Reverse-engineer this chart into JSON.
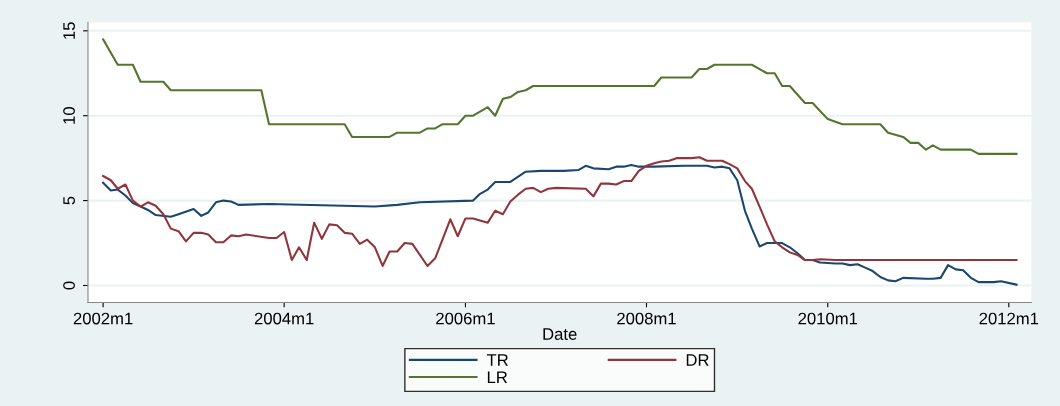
{
  "chart_data": {
    "type": "line",
    "xlabel": "Date",
    "xlim": [
      "2001-11",
      "2012-04"
    ],
    "xticks": [
      {
        "value": "2002-01",
        "label": "2002m1"
      },
      {
        "value": "2004-01",
        "label": "2004m1"
      },
      {
        "value": "2006-01",
        "label": "2006m1"
      },
      {
        "value": "2008-01",
        "label": "2008m1"
      },
      {
        "value": "2010-01",
        "label": "2010m1"
      },
      {
        "value": "2012-01",
        "label": "2012m1"
      }
    ],
    "ylim": [
      -1,
      15.5
    ],
    "yticks": [
      0,
      5,
      10,
      15
    ],
    "grid": "y",
    "legend": "bottom",
    "line_style": "solid",
    "series": [
      {
        "name": "TR",
        "color": "#1a476f",
        "x": [
          "2002-01",
          "2002-02",
          "2002-03",
          "2002-04",
          "2002-05",
          "2002-06",
          "2002-07",
          "2002-08",
          "2002-10",
          "2002-11",
          "2003-01",
          "2003-02",
          "2003-03",
          "2003-04",
          "2003-05",
          "2003-06",
          "2003-07",
          "2003-11",
          "2005-01",
          "2005-04",
          "2005-07",
          "2006-02",
          "2006-03",
          "2006-04",
          "2006-05",
          "2006-07",
          "2006-09",
          "2006-11",
          "2007-02",
          "2007-04",
          "2007-05",
          "2007-06",
          "2007-08",
          "2007-09",
          "2007-10",
          "2007-11",
          "2007-12",
          "2008-02",
          "2008-06",
          "2008-09",
          "2008-10",
          "2008-11",
          "2008-12",
          "2009-01",
          "2009-02",
          "2009-03",
          "2009-04",
          "2009-05",
          "2009-06",
          "2009-07",
          "2009-08",
          "2009-09",
          "2009-10",
          "2009-11",
          "2009-12",
          "2010-02",
          "2010-03",
          "2010-04",
          "2010-05",
          "2010-06",
          "2010-07",
          "2010-08",
          "2010-09",
          "2010-10",
          "2010-11",
          "2011-02",
          "2011-03",
          "2011-04",
          "2011-05",
          "2011-06",
          "2011-07",
          "2011-08",
          "2011-09",
          "2011-11",
          "2011-12",
          "2012-02"
        ],
        "values": [
          6.05,
          5.6,
          5.65,
          5.3,
          4.85,
          4.65,
          4.45,
          4.15,
          4.05,
          4.2,
          4.5,
          4.1,
          4.3,
          4.9,
          5.0,
          4.95,
          4.75,
          4.8,
          4.65,
          4.75,
          4.9,
          5.0,
          5.4,
          5.65,
          6.1,
          6.1,
          6.7,
          6.75,
          6.75,
          6.8,
          7.05,
          6.9,
          6.85,
          7.0,
          7.0,
          7.1,
          7.0,
          7.0,
          7.05,
          7.05,
          6.95,
          7.0,
          6.9,
          6.2,
          4.4,
          3.35,
          2.3,
          2.5,
          2.5,
          2.5,
          2.25,
          1.9,
          1.5,
          1.5,
          1.35,
          1.3,
          1.3,
          1.2,
          1.25,
          1.05,
          0.85,
          0.5,
          0.3,
          0.25,
          0.45,
          0.4,
          0.4,
          0.45,
          1.2,
          0.95,
          0.9,
          0.45,
          0.2,
          0.2,
          0.25,
          0.05
        ]
      },
      {
        "name": "DR",
        "color": "#90353b",
        "x": [
          "2002-01",
          "2002-02",
          "2002-03",
          "2002-04",
          "2002-05",
          "2002-06",
          "2002-07",
          "2002-08",
          "2002-09",
          "2002-10",
          "2002-11",
          "2002-12",
          "2003-01",
          "2003-02",
          "2003-03",
          "2003-04",
          "2003-05",
          "2003-06",
          "2003-07",
          "2003-08",
          "2003-11",
          "2003-12",
          "2004-01",
          "2004-02",
          "2004-03",
          "2004-04",
          "2004-05",
          "2004-06",
          "2004-07",
          "2004-08",
          "2004-09",
          "2004-10",
          "2004-11",
          "2004-12",
          "2005-01",
          "2005-02",
          "2005-03",
          "2005-04",
          "2005-05",
          "2005-06",
          "2005-08",
          "2005-09",
          "2005-11",
          "2005-12",
          "2006-01",
          "2006-02",
          "2006-04",
          "2006-05",
          "2006-06",
          "2006-07",
          "2006-08",
          "2006-09",
          "2006-10",
          "2006-11",
          "2006-12",
          "2007-01",
          "2007-05",
          "2007-06",
          "2007-07",
          "2007-08",
          "2007-09",
          "2007-10",
          "2007-11",
          "2007-12",
          "2008-01",
          "2008-02",
          "2008-03",
          "2008-04",
          "2008-05",
          "2008-06",
          "2008-07",
          "2008-08",
          "2008-09",
          "2008-10",
          "2008-11",
          "2008-12",
          "2009-01",
          "2009-02",
          "2009-03",
          "2009-04",
          "2009-05",
          "2009-06",
          "2009-07",
          "2009-08",
          "2009-09",
          "2009-10",
          "2009-11",
          "2009-12",
          "2010-02",
          "2012-02"
        ],
        "values": [
          6.45,
          6.2,
          5.7,
          5.95,
          5.0,
          4.65,
          4.9,
          4.7,
          4.2,
          3.35,
          3.2,
          2.6,
          3.1,
          3.1,
          3.0,
          2.55,
          2.55,
          2.95,
          2.9,
          3.0,
          2.8,
          2.8,
          3.15,
          1.5,
          2.25,
          1.5,
          3.7,
          2.75,
          3.6,
          3.55,
          3.1,
          3.05,
          2.45,
          2.7,
          2.25,
          1.15,
          2.0,
          2.0,
          2.5,
          2.45,
          1.15,
          1.6,
          3.9,
          2.9,
          3.95,
          3.95,
          3.7,
          4.4,
          4.2,
          4.95,
          5.35,
          5.7,
          5.75,
          5.5,
          5.7,
          5.75,
          5.7,
          5.25,
          6.0,
          6.0,
          5.95,
          6.15,
          6.15,
          6.75,
          7.05,
          7.2,
          7.3,
          7.35,
          7.5,
          7.5,
          7.5,
          7.55,
          7.35,
          7.35,
          7.35,
          7.15,
          6.9,
          6.15,
          5.7,
          4.65,
          3.6,
          2.6,
          2.25,
          1.95,
          1.8,
          1.5,
          1.5,
          1.55,
          1.5,
          1.5
        ]
      },
      {
        "name": "LR",
        "color": "#55752f",
        "x": [
          "2002-01",
          "2002-03",
          "2002-05",
          "2002-06",
          "2002-09",
          "2002-10",
          "2003-10",
          "2003-11",
          "2004-09",
          "2004-10",
          "2005-03",
          "2005-04",
          "2005-07",
          "2005-08",
          "2005-09",
          "2005-10",
          "2005-12",
          "2006-01",
          "2006-02",
          "2006-04",
          "2006-05",
          "2006-06",
          "2006-07",
          "2006-08",
          "2006-09",
          "2006-10",
          "2008-02",
          "2008-03",
          "2008-07",
          "2008-08",
          "2008-09",
          "2008-10",
          "2009-03",
          "2009-05",
          "2009-06",
          "2009-07",
          "2009-08",
          "2009-10",
          "2009-11",
          "2010-01",
          "2010-03",
          "2010-08",
          "2010-09",
          "2010-11",
          "2010-12",
          "2011-01",
          "2011-02",
          "2011-03",
          "2011-04",
          "2011-08",
          "2011-09",
          "2012-02"
        ],
        "values": [
          14.5,
          13.0,
          13.0,
          12.0,
          12.0,
          11.5,
          11.5,
          9.5,
          9.5,
          8.75,
          8.75,
          9.0,
          9.0,
          9.25,
          9.25,
          9.5,
          9.5,
          10.0,
          10.0,
          10.5,
          10.0,
          11.0,
          11.1,
          11.4,
          11.5,
          11.75,
          11.75,
          12.25,
          12.25,
          12.75,
          12.75,
          13.0,
          13.0,
          12.5,
          12.5,
          11.75,
          11.75,
          10.75,
          10.75,
          9.8,
          9.5,
          9.5,
          9.0,
          8.75,
          8.4,
          8.4,
          8.0,
          8.25,
          8.0,
          8.0,
          7.75,
          7.75
        ]
      }
    ]
  }
}
